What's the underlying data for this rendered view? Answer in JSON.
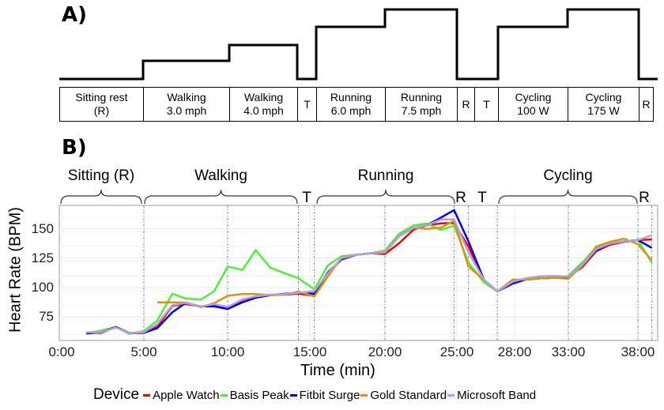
{
  "panel_a": {
    "label": "A)",
    "stages": [
      {
        "lines": [
          "Sitting rest",
          "(R)"
        ],
        "level": 0
      },
      {
        "lines": [
          "Walking",
          "3.0 mph"
        ],
        "level": 1
      },
      {
        "lines": [
          "Walking",
          "4.0 mph"
        ],
        "level": 2
      },
      {
        "lines": [
          "T"
        ],
        "level": 0
      },
      {
        "lines": [
          "Running",
          "6.0 mph"
        ],
        "level": 3
      },
      {
        "lines": [
          "Running",
          "7.5 mph"
        ],
        "level": 4
      },
      {
        "lines": [
          "R"
        ],
        "level": 0
      },
      {
        "lines": [
          "T"
        ],
        "level": 0
      },
      {
        "lines": [
          "Cycling",
          "100 W"
        ],
        "level": 3
      },
      {
        "lines": [
          "Cycling",
          "175 W"
        ],
        "level": 4
      },
      {
        "lines": [
          "R"
        ],
        "level": 0
      }
    ]
  },
  "panel_b": {
    "label": "B)",
    "phases": [
      "Sitting (R)",
      "Walking",
      "T",
      "Running",
      "R",
      "T",
      "Cycling",
      "R"
    ]
  },
  "chart_data": {
    "type": "line",
    "xlabel": "Time (min)",
    "ylabel": "Heart Rate (BPM)",
    "ylim": [
      55,
      170
    ],
    "x_ticks": [
      {
        "value": 0,
        "label": "0:00"
      },
      {
        "value": 5,
        "label": "5:00"
      },
      {
        "value": 10,
        "label": "10:00"
      },
      {
        "value": 15,
        "label": "15:00"
      },
      {
        "value": 20,
        "label": "20:00"
      },
      {
        "value": 25,
        "label": "25:00"
      },
      {
        "value": 28,
        "label": "28:00"
      },
      {
        "value": 33,
        "label": "33:00"
      },
      {
        "value": 38,
        "label": "38:00"
      }
    ],
    "y_ticks": [
      75,
      100,
      125,
      150
    ],
    "phase_boundaries": [
      5,
      10,
      14.3,
      15.3,
      20,
      24.8,
      25.6,
      27.1,
      33,
      38,
      39
    ],
    "grid": true,
    "legend": {
      "title": "Device",
      "placement": "bottom"
    },
    "x": [
      1.5,
      2.4,
      3.3,
      4.1,
      5.0,
      5.8,
      6.7,
      7.5,
      8.4,
      9.2,
      10.0,
      10.9,
      11.7,
      12.6,
      13.5,
      14.3,
      15.3,
      16.2,
      17.1,
      18.1,
      19.1,
      20.0,
      21.0,
      22.0,
      22.9,
      23.9,
      24.8,
      25.6,
      26.4,
      27.1,
      27.9,
      29.0,
      30.4,
      31.7,
      33.0,
      34.0,
      35.0,
      36.0,
      37.0,
      38.0,
      39.0
    ],
    "series": [
      {
        "name": "Apple Watch",
        "color": "#ff0000",
        "values": [
          61.8,
          61.4,
          66.4,
          61.4,
          61.4,
          66.8,
          84.5,
          86,
          84,
          85,
          82,
          89.5,
          92.5,
          93.6,
          94,
          94.8,
          93,
          112,
          124,
          128,
          129.3,
          128.6,
          138,
          149.5,
          153,
          154.7,
          155,
          135,
          106.8,
          96.7,
          105,
          106.8,
          108,
          108.4,
          109.5,
          117.4,
          131,
          136.5,
          139,
          140.5,
          141
        ]
      },
      {
        "name": "Basis Peak",
        "color": "#4cf03a",
        "values": [
          61.4,
          63.4,
          66.4,
          60.7,
          63,
          72,
          94.8,
          90.7,
          89.8,
          97,
          118,
          115,
          132,
          117,
          112,
          108,
          98.6,
          119,
          126.6,
          128,
          129.3,
          131.5,
          146,
          153,
          154.5,
          149,
          153,
          121.4,
          104.5,
          96.7,
          105,
          106.8,
          108,
          108.4,
          110,
          121.4,
          134,
          137.6,
          139.4,
          140.5,
          121.4
        ]
      },
      {
        "name": "Fitbit Surge",
        "color": "#0000ff",
        "values": [
          61,
          62,
          66.5,
          61.5,
          61.5,
          65.5,
          79,
          87,
          84,
          84,
          81.8,
          87.5,
          91.4,
          93.6,
          94.8,
          95.5,
          94.8,
          113,
          124,
          128,
          129.3,
          130,
          144,
          151,
          153,
          159.7,
          166,
          139.4,
          106.8,
          96.7,
          103.4,
          106.8,
          108,
          108.4,
          109.5,
          119,
          131.5,
          137.6,
          139.4,
          140.5,
          133.8
        ]
      },
      {
        "name": "Gold Standard",
        "color": "#d4960a",
        "values": [
          null,
          null,
          null,
          null,
          null,
          87.5,
          87.5,
          87.3,
          83.4,
          86.8,
          93,
          94.5,
          94.5,
          93.6,
          94,
          96.6,
          92.5,
          109.5,
          125.5,
          128,
          129.3,
          130,
          144,
          151,
          150,
          151,
          157,
          118,
          106.8,
          96.7,
          106.8,
          106.8,
          108,
          108.4,
          107.5,
          119,
          135,
          139,
          141.7,
          137,
          123.2
        ]
      },
      {
        "name": "Microsoft Band",
        "color": "#b89fd6",
        "values": [
          62,
          62,
          66,
          61.5,
          62,
          69,
          85,
          87,
          84,
          86,
          83.5,
          90,
          92.5,
          94,
          94.5,
          95.5,
          97,
          112,
          125,
          128,
          129.3,
          130,
          144,
          151,
          153,
          158,
          158,
          130,
          106.8,
          96.7,
          105,
          108,
          109.7,
          110,
          109.5,
          119,
          132.7,
          137.6,
          139.4,
          140.5,
          144.6
        ]
      }
    ]
  }
}
